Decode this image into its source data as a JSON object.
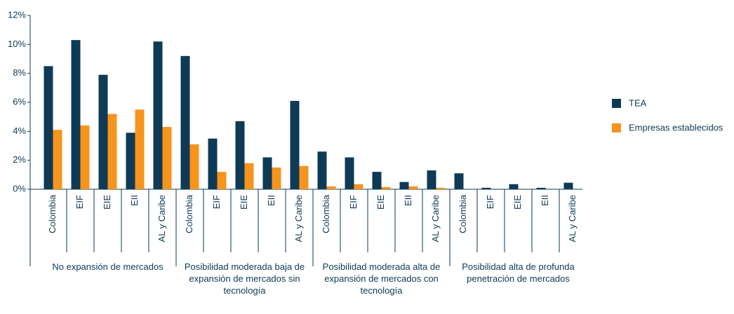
{
  "chart_data": {
    "type": "bar",
    "categories": [
      "Colombia",
      "EIF",
      "EIE",
      "EII",
      "AL y Caribe",
      "Colombia",
      "EIF",
      "EIE",
      "EII",
      "AL y Caribe",
      "Colombia",
      "EIF",
      "EIE",
      "EII",
      "AL y Caribe",
      "Colombia",
      "EIF",
      "EIE",
      "EII",
      "AL y Caribe"
    ],
    "groups": [
      "No expansión de mercados",
      "Posibilidad moderada baja de expansión de mercados sin tecnología",
      "Posibilidad moderada alta de expansión de mercados con tecnología",
      "Posibilidad alta de profunda penetración de mercados"
    ],
    "series": [
      {
        "name": "TEA",
        "color": "#0e3a55",
        "values": [
          8.5,
          10.3,
          7.9,
          3.9,
          10.2,
          9.2,
          3.5,
          4.7,
          2.2,
          6.1,
          2.6,
          2.2,
          1.2,
          0.5,
          1.3,
          1.1,
          0.1,
          0.35,
          0.1,
          0.45
        ]
      },
      {
        "name": "Empresas establecidos",
        "color": "#f7941d",
        "values": [
          4.1,
          4.4,
          5.2,
          5.5,
          4.3,
          3.1,
          1.2,
          1.8,
          1.5,
          1.6,
          0.2,
          0.35,
          0.15,
          0.2,
          0.1,
          0,
          0,
          0,
          0,
          0
        ]
      }
    ],
    "ylim": [
      0,
      12
    ],
    "yticks": [
      {
        "value": 0,
        "label": "0%"
      },
      {
        "value": 2,
        "label": "2%"
      },
      {
        "value": 4,
        "label": "4%"
      },
      {
        "value": 6,
        "label": "6%"
      },
      {
        "value": 8,
        "label": "8%"
      },
      {
        "value": 10,
        "label": "10%"
      },
      {
        "value": 12,
        "label": "12%"
      }
    ],
    "legend": "right"
  }
}
